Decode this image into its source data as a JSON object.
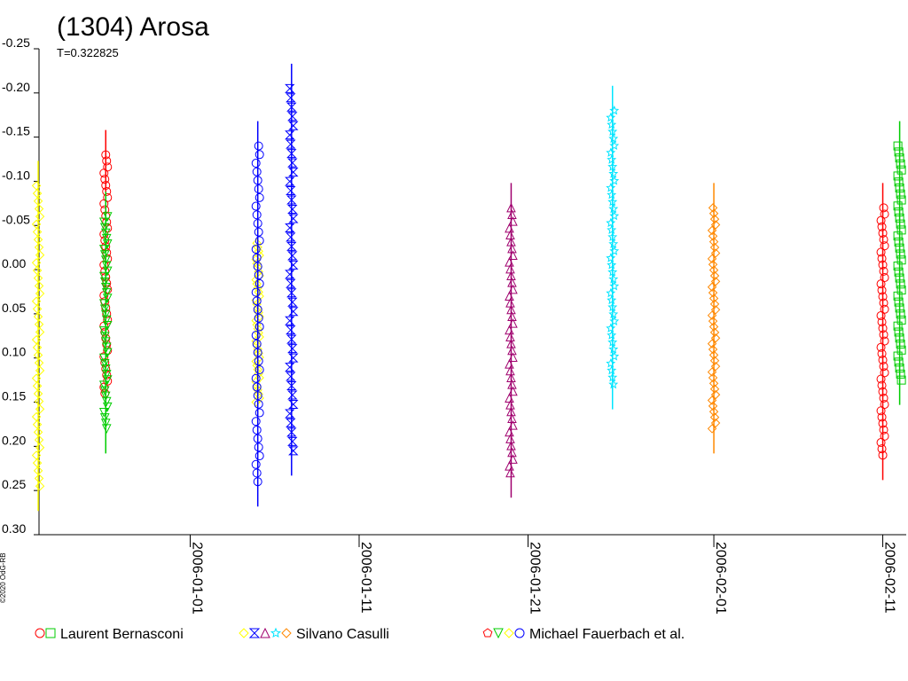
{
  "chart_data": {
    "type": "scatter",
    "title": "(1304) Arosa",
    "subtitle": "T=0.322825",
    "copyright": "©2020 OdG-RB",
    "y_axis": {
      "inverted": true,
      "min": -0.25,
      "max": 0.3,
      "ticks": [
        "-0.25",
        "-0.20",
        "-0.15",
        "-0.10",
        "-0.05",
        "0.00",
        "0.05",
        "0.10",
        "0.15",
        "0.20",
        "0.25",
        "0.30"
      ]
    },
    "x_axis": {
      "type": "date",
      "ticks": [
        "2006-01-01",
        "2006-01-11",
        "2006-01-21",
        "2006-02-01",
        "2006-02-11"
      ]
    },
    "grid": false,
    "legend_placement": "bottom",
    "legend": [
      {
        "observer": "Laurent Bernasconi",
        "symbols": [
          {
            "shape": "circle",
            "color": "#ff0000"
          },
          {
            "shape": "square",
            "color": "#00cc00"
          }
        ]
      },
      {
        "observer": "Silvano Casulli",
        "symbols": [
          {
            "shape": "diamond",
            "color": "#ffff00"
          },
          {
            "shape": "hourglass",
            "color": "#0000ff"
          },
          {
            "shape": "triangle",
            "color": "#a0006e"
          },
          {
            "shape": "star",
            "color": "#00e5ff"
          },
          {
            "shape": "diamond",
            "color": "#ff8800"
          }
        ]
      },
      {
        "observer": "Michael Fauerbach et al.",
        "symbols": [
          {
            "shape": "pentagon",
            "color": "#ff0000"
          },
          {
            "shape": "triangle-down",
            "color": "#00cc00"
          },
          {
            "shape": "diamond",
            "color": "#ffff00"
          },
          {
            "shape": "circle",
            "color": "#0000ff"
          }
        ]
      }
    ],
    "series": [
      {
        "color": "#ffff00",
        "shape": "diamond",
        "x": "2005-12-23",
        "y_min": -0.095,
        "y_max": 0.245
      },
      {
        "color": "#ff0000",
        "shape": "circle",
        "x": "2005-12-27",
        "y_min": -0.13,
        "y_max": 0.14
      },
      {
        "color": "#00cc00",
        "shape": "triangle-down",
        "x": "2005-12-27",
        "y_min": -0.06,
        "y_max": 0.18
      },
      {
        "color": "#ffff00",
        "shape": "diamond",
        "x": "2006-01-05",
        "y_min": -0.03,
        "y_max": 0.15
      },
      {
        "color": "#0000ff",
        "shape": "circle",
        "x": "2006-01-05",
        "y_min": -0.14,
        "y_max": 0.24
      },
      {
        "color": "#0000ff",
        "shape": "hourglass",
        "x": "2006-01-07",
        "y_min": -0.205,
        "y_max": 0.205
      },
      {
        "color": "#a0006e",
        "shape": "triangle",
        "x": "2006-01-20",
        "y_min": -0.07,
        "y_max": 0.23
      },
      {
        "color": "#00e5ff",
        "shape": "star",
        "x": "2006-01-26",
        "y_min": -0.18,
        "y_max": 0.13
      },
      {
        "color": "#ff8800",
        "shape": "diamond",
        "x": "2006-02-01",
        "y_min": -0.07,
        "y_max": 0.18
      },
      {
        "color": "#ff0000",
        "shape": "circle",
        "x": "2006-02-11",
        "y_min": -0.07,
        "y_max": 0.21
      },
      {
        "color": "#00cc00",
        "shape": "square",
        "x": "2006-02-12",
        "y_min": -0.14,
        "y_max": 0.125
      }
    ]
  }
}
